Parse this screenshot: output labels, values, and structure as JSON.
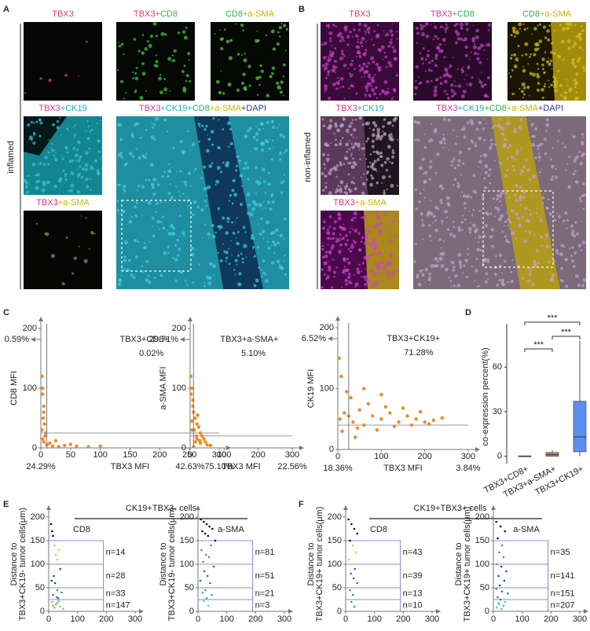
{
  "panel_letters": [
    "A",
    "B",
    "C",
    "D",
    "E",
    "F"
  ],
  "panel_a": {
    "side_label": "inflamed",
    "images": [
      {
        "label": [
          {
            "text": "TBX3",
            "color": "#e0338a"
          }
        ]
      },
      {
        "label": [
          {
            "text": "TBX3",
            "color": "#e0338a"
          },
          {
            "text": "+CD8",
            "color": "#2bb34b"
          }
        ]
      },
      {
        "label": [
          {
            "text": "CD8",
            "color": "#2bb34b"
          },
          {
            "text": "+a-SMA",
            "color": "#c8b400"
          }
        ]
      },
      {
        "label": [
          {
            "text": "TBX3",
            "color": "#e0338a"
          },
          {
            "text": "+CK19",
            "color": "#1fb0b5"
          }
        ]
      },
      {
        "label": [
          {
            "text": "TBX3",
            "color": "#e0338a"
          },
          {
            "text": "+CK19",
            "color": "#1fb0b5"
          },
          {
            "text": "+CD8",
            "color": "#2bb34b"
          },
          {
            "text": "+a-SMA",
            "color": "#c8b400"
          },
          {
            "text": "+DAPI",
            "color": "#2c3d9b"
          }
        ]
      },
      {
        "label": [
          {
            "text": "TBX3",
            "color": "#e0338a"
          },
          {
            "text": "+a-SMA",
            "color": "#c8b400"
          }
        ]
      }
    ]
  },
  "panel_b": {
    "side_label": "non-inflamed",
    "images": [
      {
        "label": [
          {
            "text": "TBX3",
            "color": "#e0338a"
          }
        ]
      },
      {
        "label": [
          {
            "text": "TBX3",
            "color": "#e0338a"
          },
          {
            "text": "+CD8",
            "color": "#2bb34b"
          }
        ]
      },
      {
        "label": [
          {
            "text": "CD8",
            "color": "#2bb34b"
          },
          {
            "text": "+a-SMA",
            "color": "#c8b400"
          }
        ]
      },
      {
        "label": [
          {
            "text": "TBX3",
            "color": "#e0338a"
          },
          {
            "text": "+CK19",
            "color": "#1fb0b5"
          }
        ]
      },
      {
        "label": [
          {
            "text": "TBX3",
            "color": "#e0338a"
          },
          {
            "text": "+CK19",
            "color": "#1fb0b5"
          },
          {
            "text": "+CD8",
            "color": "#2bb34b"
          },
          {
            "text": "+a-SMA",
            "color": "#c8b400"
          },
          {
            "text": "+DAPI",
            "color": "#2c3d9b"
          }
        ]
      },
      {
        "label": [
          {
            "text": "TBX3",
            "color": "#e0338a"
          },
          {
            "text": "+a-SMA",
            "color": "#c8b400"
          }
        ]
      }
    ]
  },
  "panel_e_title": "CK19+TBX3- cells",
  "panel_f_title": "CK19+TBX3+ cells",
  "chart_data": [
    {
      "type": "scatter",
      "xlabel": "TBX3 MFI",
      "ylabel": "CD8 MFI",
      "color": "#f5891f",
      "label_color": "#e8502a",
      "x": [
        2,
        3,
        5,
        4,
        6,
        2,
        8,
        3,
        5,
        10,
        20,
        30,
        15,
        40,
        60,
        80,
        100,
        25,
        50,
        5,
        3,
        7
      ],
      "y": [
        120,
        90,
        70,
        50,
        40,
        30,
        25,
        15,
        10,
        5,
        3,
        2,
        8,
        4,
        3,
        2,
        3,
        12,
        6,
        60,
        100,
        20
      ],
      "xlim": [
        0,
        300
      ],
      "ylim": [
        0,
        200
      ],
      "xticks": [
        0,
        50,
        100,
        150,
        200,
        250,
        300
      ],
      "yticks": [
        0,
        100,
        200
      ],
      "x_gate": 10,
      "y_gate": 25,
      "gate_label": "TBX3+CD8+",
      "quadrants": {
        "top_left": {
          "value": 0.59,
          "label": "0.59%"
        },
        "top_right": {
          "value": 0.02,
          "label": "0.02%"
        },
        "bottom_left": {
          "value": 24.29,
          "label": "24.29%"
        },
        "bottom_right": {
          "value": 75.1,
          "label": "75.10%"
        }
      }
    },
    {
      "type": "scatter",
      "xlabel": "TBX3 MFI",
      "ylabel": "a-SMA MFI",
      "color": "#f5891f",
      "label_color": "#e8502a",
      "x": [
        2,
        5,
        8,
        10,
        15,
        20,
        25,
        30,
        35,
        40,
        45,
        50,
        5,
        12,
        18,
        22,
        28,
        8,
        3,
        15,
        30,
        60,
        10,
        20,
        6
      ],
      "y": [
        120,
        100,
        80,
        60,
        50,
        40,
        35,
        25,
        20,
        15,
        10,
        5,
        45,
        30,
        20,
        55,
        12,
        70,
        90,
        10,
        8,
        4,
        2,
        15,
        30
      ],
      "xlim": [
        0,
        300
      ],
      "ylim": [
        0,
        200
      ],
      "xticks": [
        0,
        100,
        200,
        300
      ],
      "yticks": [
        0,
        100,
        200
      ],
      "x_gate": 10,
      "y_gate": 20,
      "gate_label": "TBX3+a-SMA+",
      "quadrants": {
        "top_left": {
          "value": 29.71,
          "label": "29.71%"
        },
        "top_right": {
          "value": 5.1,
          "label": "5.10%"
        },
        "bottom_left": {
          "value": 42.63,
          "label": "42.63%"
        },
        "bottom_right": {
          "value": 22.56,
          "label": "22.56%"
        }
      }
    },
    {
      "type": "scatter",
      "xlabel": "TBX3 MFI",
      "ylabel": "CK19 MFI",
      "color": "#f5891f",
      "label_color": "#e8502a",
      "x": [
        5,
        15,
        25,
        35,
        50,
        60,
        80,
        100,
        120,
        140,
        160,
        180,
        200,
        220,
        240,
        30,
        70,
        110,
        150,
        190,
        10,
        45,
        90,
        130,
        170,
        210,
        20,
        60,
        100,
        3,
        8,
        40
      ],
      "y": [
        50,
        60,
        55,
        45,
        65,
        40,
        55,
        50,
        60,
        45,
        55,
        50,
        45,
        48,
        52,
        85,
        75,
        70,
        68,
        62,
        30,
        35,
        32,
        38,
        40,
        42,
        95,
        100,
        90,
        150,
        120,
        20
      ],
      "xlim": [
        0,
        300
      ],
      "ylim": [
        0,
        200
      ],
      "xticks": [
        0,
        100,
        200,
        300
      ],
      "yticks": [
        0,
        100,
        200
      ],
      "x_gate": 25,
      "y_gate": 40,
      "gate_label": "TBX3+CK19+",
      "quadrants": {
        "top_left": {
          "value": 6.52,
          "label": "6.52%"
        },
        "top_right": {
          "value": 71.28,
          "label": "71.28%"
        },
        "bottom_left": {
          "value": 18.36,
          "label": "18.36%"
        },
        "bottom_right": {
          "value": 3.84,
          "label": "3.84%"
        }
      }
    },
    {
      "type": "box",
      "ylabel": "co-expression percent(%)",
      "categories": [
        "TBX3+CD8+",
        "TBX3+a-SMA+",
        "TBX3+CK19+"
      ],
      "colors": [
        "#bbbbbb",
        "#e87060",
        "#5b8ff0"
      ],
      "boxes": [
        {
          "min": 0,
          "q1": 0,
          "median": 0,
          "q3": 0.2,
          "max": 0.5
        },
        {
          "min": 0,
          "q1": 0,
          "median": 1,
          "q3": 2.5,
          "max": 4
        },
        {
          "min": 0,
          "q1": 3,
          "median": 13,
          "q3": 37,
          "max": 78
        }
      ],
      "ylim": [
        -5,
        85
      ],
      "yticks": [
        0,
        30,
        60
      ],
      "comparisons": [
        {
          "groups": [
            0,
            1
          ],
          "label": "***"
        },
        {
          "groups": [
            1,
            2
          ],
          "label": "***"
        },
        {
          "groups": [
            0,
            2
          ],
          "label": "***"
        }
      ]
    },
    {
      "type": "banded_scatter",
      "title": "CD8",
      "ylabel": [
        "Distance to",
        "TBX3+CK19- tumor cells(μm)"
      ],
      "x": [
        8,
        12,
        15,
        20,
        25,
        30,
        35,
        40,
        18,
        22,
        10,
        30,
        45,
        28,
        15,
        33,
        12,
        25,
        40,
        20,
        30,
        50,
        15,
        35
      ],
      "y": [
        185,
        170,
        160,
        140,
        120,
        110,
        130,
        90,
        75,
        60,
        65,
        45,
        40,
        30,
        35,
        28,
        20,
        15,
        10,
        8,
        18,
        5,
        12,
        22
      ],
      "xlim": [
        0,
        300
      ],
      "ylim": [
        0,
        200
      ],
      "xticks": [
        0,
        100,
        200,
        300
      ],
      "yticks": [
        0,
        50,
        100,
        150,
        200
      ],
      "band_edges": [
        25,
        50,
        100,
        150
      ],
      "band_xmax": 190,
      "band_colors": [
        "#7cc576",
        "#3a7ac0",
        "#2a3f8f",
        "#e2cf3a",
        "#111111"
      ],
      "counts": [
        {
          "value": 147,
          "label": "n=147"
        },
        {
          "value": 33,
          "label": "n=33"
        },
        {
          "value": 28,
          "label": "n=28"
        },
        {
          "value": 14,
          "label": "n=14"
        }
      ]
    },
    {
      "type": "banded_scatter",
      "title": "a-SMA",
      "ylabel": [
        "Distance to",
        "TBX3+CK19- tumor cells(μm)"
      ],
      "x": [
        10,
        20,
        30,
        40,
        50,
        15,
        25,
        35,
        60,
        45,
        12,
        28,
        38,
        18,
        55,
        22,
        33,
        8,
        42,
        26,
        16,
        48,
        30,
        20,
        36
      ],
      "y": [
        195,
        190,
        185,
        180,
        175,
        170,
        165,
        160,
        150,
        140,
        130,
        120,
        115,
        105,
        95,
        85,
        75,
        65,
        60,
        45,
        40,
        35,
        28,
        22,
        12
      ],
      "xlim": [
        0,
        300
      ],
      "ylim": [
        0,
        200
      ],
      "xticks": [
        0,
        100,
        200,
        300
      ],
      "yticks": [
        0,
        50,
        100,
        150,
        200
      ],
      "band_edges": [
        25,
        50,
        100,
        150
      ],
      "band_xmax": 190,
      "band_colors": [
        "#5bc8dc",
        "#3aa0c8",
        "#2e6aa0",
        "#b05ab8",
        "#111111"
      ],
      "counts": [
        {
          "value": 3,
          "label": "n=3"
        },
        {
          "value": 21,
          "label": "n=21"
        },
        {
          "value": 51,
          "label": "n=51"
        },
        {
          "value": 81,
          "label": "n=81"
        }
      ]
    },
    {
      "type": "banded_scatter",
      "title": "CD8",
      "ylabel": [
        "Distance to",
        "TBX3+CK19+ tumor cells(μm)"
      ],
      "x": [
        10,
        20,
        30,
        40,
        15,
        25,
        35,
        12,
        22,
        32,
        18,
        28,
        40,
        15,
        25,
        20,
        30
      ],
      "y": [
        195,
        185,
        175,
        165,
        150,
        140,
        125,
        110,
        100,
        90,
        80,
        70,
        60,
        45,
        35,
        20,
        10
      ],
      "xlim": [
        0,
        300
      ],
      "ylim": [
        0,
        200
      ],
      "xticks": [
        0,
        100,
        200,
        300
      ],
      "yticks": [
        0,
        50,
        100,
        150,
        200
      ],
      "band_edges": [
        25,
        50,
        100,
        150
      ],
      "band_xmax": 190,
      "band_colors": [
        "#3a8ad0",
        "#3a8ad0",
        "#6a4aa0",
        "#e2cf3a",
        "#111111"
      ],
      "counts": [
        {
          "value": 10,
          "label": "n=10"
        },
        {
          "value": 13,
          "label": "n=13"
        },
        {
          "value": 39,
          "label": "n=39"
        },
        {
          "value": 43,
          "label": "n=43"
        }
      ]
    },
    {
      "type": "banded_scatter",
      "title": "a-SMA",
      "ylabel": [
        "Distance to",
        "TBX3+CK19+ tumor cells(μm)"
      ],
      "x": [
        10,
        25,
        40,
        15,
        30,
        20,
        35,
        12,
        28,
        45,
        18,
        38,
        22,
        10,
        30,
        50,
        15,
        25,
        40,
        20,
        35,
        12,
        28,
        18
      ],
      "y": [
        190,
        180,
        170,
        155,
        140,
        125,
        115,
        100,
        95,
        85,
        75,
        65,
        55,
        48,
        42,
        38,
        30,
        25,
        20,
        15,
        12,
        8,
        5,
        18
      ],
      "xlim": [
        0,
        300
      ],
      "ylim": [
        0,
        200
      ],
      "xticks": [
        0,
        100,
        200,
        300
      ],
      "yticks": [
        0,
        50,
        100,
        150,
        200
      ],
      "band_edges": [
        25,
        50,
        100,
        150
      ],
      "band_xmax": 190,
      "band_colors": [
        "#40c8dc",
        "#2a7ab0",
        "#1f4f8f",
        "#b05ab8",
        "#111111"
      ],
      "counts": [
        {
          "value": 207,
          "label": "n=207"
        },
        {
          "value": 151,
          "label": "n=151"
        },
        {
          "value": 141,
          "label": "n=141"
        },
        {
          "value": 35,
          "label": "n=35"
        }
      ]
    }
  ]
}
